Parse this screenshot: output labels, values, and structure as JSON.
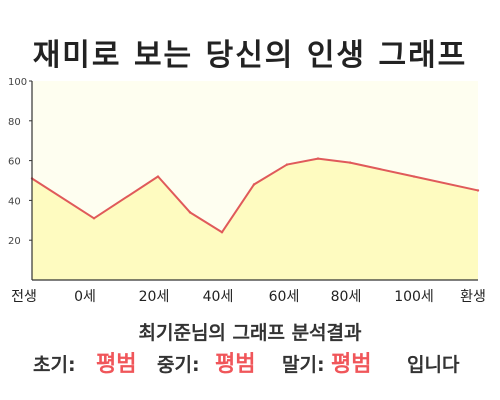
{
  "title": "재미로 보는 당신의 인생 그래프",
  "chart_data": {
    "type": "area",
    "title": "재미로 보는 당신의 인생 그래프",
    "x_labels": [
      "전생",
      "0세",
      "20세",
      "40세",
      "60세",
      "80세",
      "100세",
      "환생"
    ],
    "points": [
      {
        "x": "전생",
        "y": 51
      },
      {
        "x": "0세",
        "y": 31
      },
      {
        "x": "20세",
        "y": 52
      },
      {
        "x": "30세",
        "y": 34
      },
      {
        "x": "40세",
        "y": 24
      },
      {
        "x": "50세",
        "y": 48
      },
      {
        "x": "60세",
        "y": 58
      },
      {
        "x": "70세",
        "y": 61
      },
      {
        "x": "80세",
        "y": 59
      },
      {
        "x": "100세",
        "y": 52
      },
      {
        "x": "환생",
        "y": 45
      }
    ],
    "y_ticks": [
      20,
      40,
      60,
      80,
      100
    ],
    "ylim": [
      0,
      100
    ],
    "grid": false,
    "legend": "none",
    "colors": {
      "line": "#e05a5a",
      "fill": "#fefbc0",
      "plot_bg": "#fefef0",
      "axis": "#333333"
    }
  },
  "result": {
    "heading": "최기준님의 그래프 분석결과",
    "early_label": "초기:",
    "early_value": "평범",
    "mid_label": "중기:",
    "mid_value": "평범",
    "late_label": "말기:",
    "late_value": "평범",
    "suffix": "입니다"
  }
}
